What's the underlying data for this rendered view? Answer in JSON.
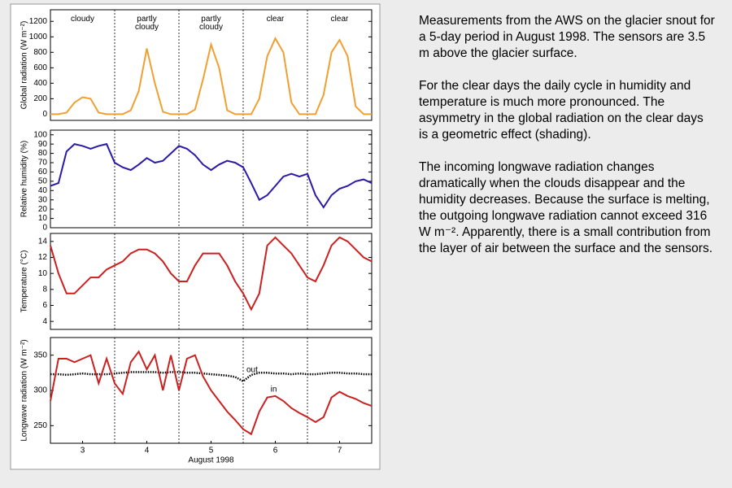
{
  "chart_data": [
    {
      "type": "line",
      "ylabel": "Global radiation (W m⁻²)",
      "color": "#f0a030",
      "annotations": [
        "cloudy",
        "partly cloudy",
        "partly cloudy",
        "clear",
        "clear"
      ],
      "x": [
        3,
        3.125,
        3.25,
        3.375,
        3.5,
        3.625,
        3.75,
        3.875,
        4,
        4.125,
        4.25,
        4.375,
        4.5,
        4.625,
        4.75,
        4.875,
        5,
        5.125,
        5.25,
        5.375,
        5.5,
        5.625,
        5.75,
        5.875,
        6,
        6.125,
        6.25,
        6.375,
        6.5,
        6.625,
        6.75,
        6.875,
        7,
        7.125,
        7.25,
        7.375,
        7.5,
        7.625,
        7.75,
        7.875,
        8
      ],
      "values": [
        0,
        0,
        20,
        150,
        220,
        200,
        20,
        0,
        0,
        0,
        50,
        300,
        850,
        400,
        30,
        0,
        0,
        0,
        60,
        450,
        900,
        600,
        50,
        0,
        0,
        0,
        200,
        750,
        980,
        800,
        150,
        0,
        0,
        0,
        250,
        800,
        960,
        750,
        100,
        0,
        0
      ],
      "xlim": [
        3,
        8
      ],
      "ylim": [
        -80,
        1350
      ],
      "yticks": [
        0,
        200,
        400,
        600,
        800,
        1000,
        1200
      ]
    },
    {
      "type": "line",
      "ylabel": "Relative humidity (%)",
      "color": "#2a1aa8",
      "x": [
        3,
        3.125,
        3.25,
        3.375,
        3.5,
        3.625,
        3.75,
        3.875,
        4,
        4.125,
        4.25,
        4.375,
        4.5,
        4.625,
        4.75,
        4.875,
        5,
        5.125,
        5.25,
        5.375,
        5.5,
        5.625,
        5.75,
        5.875,
        6,
        6.125,
        6.25,
        6.375,
        6.5,
        6.625,
        6.75,
        6.875,
        7,
        7.125,
        7.25,
        7.375,
        7.5,
        7.625,
        7.75,
        7.875,
        8
      ],
      "values": [
        45,
        48,
        82,
        90,
        88,
        85,
        88,
        90,
        70,
        65,
        62,
        68,
        75,
        70,
        72,
        80,
        88,
        85,
        78,
        68,
        62,
        68,
        72,
        70,
        65,
        48,
        30,
        35,
        45,
        55,
        58,
        55,
        58,
        35,
        22,
        35,
        42,
        45,
        50,
        52,
        48
      ],
      "xlim": [
        3,
        8
      ],
      "ylim": [
        0,
        105
      ],
      "yticks": [
        0,
        10,
        20,
        30,
        40,
        50,
        60,
        70,
        80,
        90,
        100
      ]
    },
    {
      "type": "line",
      "ylabel": "Temperature (°C)",
      "color": "#cc2020",
      "x": [
        3,
        3.125,
        3.25,
        3.375,
        3.5,
        3.625,
        3.75,
        3.875,
        4,
        4.125,
        4.25,
        4.375,
        4.5,
        4.625,
        4.75,
        4.875,
        5,
        5.125,
        5.25,
        5.375,
        5.5,
        5.625,
        5.75,
        5.875,
        6,
        6.125,
        6.25,
        6.375,
        6.5,
        6.625,
        6.75,
        6.875,
        7,
        7.125,
        7.25,
        7.375,
        7.5,
        7.625,
        7.75,
        7.875,
        8
      ],
      "values": [
        13.5,
        10,
        7.5,
        7.5,
        8.5,
        9.5,
        9.5,
        10.5,
        11,
        11.5,
        12.5,
        13,
        13,
        12.5,
        11.5,
        10,
        9,
        9,
        11,
        12.5,
        12.5,
        12.5,
        11,
        9,
        7.5,
        5.5,
        7.5,
        13.5,
        14.5,
        13.5,
        12.5,
        11,
        9.5,
        9,
        11,
        13.5,
        14.5,
        14,
        13,
        12,
        11.5
      ],
      "xlim": [
        3,
        8
      ],
      "ylim": [
        3,
        15
      ],
      "yticks": [
        4,
        6,
        8,
        10,
        12,
        14
      ]
    },
    {
      "type": "line",
      "ylabel": "Longwave radiation (W m⁻²)",
      "xlabel": "August 1998",
      "x": [
        3,
        3.125,
        3.25,
        3.375,
        3.5,
        3.625,
        3.75,
        3.875,
        4,
        4.125,
        4.25,
        4.375,
        4.5,
        4.625,
        4.75,
        4.875,
        5,
        5.125,
        5.25,
        5.375,
        5.5,
        5.625,
        5.75,
        5.875,
        6,
        6.125,
        6.25,
        6.375,
        6.5,
        6.625,
        6.75,
        6.875,
        7,
        7.125,
        7.25,
        7.375,
        7.5,
        7.625,
        7.75,
        7.875,
        8
      ],
      "series": [
        {
          "name": "out",
          "color": "#000000",
          "style": "dotted",
          "values": [
            323,
            323,
            322,
            323,
            324,
            323,
            323,
            323,
            324,
            325,
            326,
            326,
            326,
            326,
            325,
            326,
            326,
            325,
            325,
            324,
            323,
            322,
            321,
            319,
            313,
            322,
            325,
            325,
            324,
            324,
            323,
            324,
            323,
            323,
            324,
            325,
            325,
            324,
            324,
            323,
            323
          ]
        },
        {
          "name": "in",
          "color": "#cc2020",
          "style": "solid",
          "values": [
            285,
            345,
            345,
            340,
            345,
            350,
            310,
            345,
            310,
            295,
            340,
            355,
            330,
            350,
            300,
            350,
            300,
            345,
            350,
            320,
            300,
            285,
            270,
            258,
            245,
            238,
            270,
            290,
            292,
            285,
            275,
            268,
            262,
            255,
            262,
            290,
            298,
            292,
            288,
            282,
            278
          ]
        }
      ],
      "xlim": [
        3,
        8
      ],
      "ylim": [
        225,
        375
      ],
      "yticks": [
        250,
        300,
        350
      ],
      "xticks": [
        {
          "value": 3.5,
          "label": "3"
        },
        {
          "value": 4.5,
          "label": "4"
        },
        {
          "value": 5.5,
          "label": "5"
        },
        {
          "value": 6.5,
          "label": "6"
        },
        {
          "value": 7.5,
          "label": "7"
        }
      ]
    }
  ],
  "description": [
    "Measurements from the AWS on the glacier snout for a 5-day period in August 1998. The sensors are 3.5 m above the glacier surface.",
    "For the clear days the daily cycle in humidity and temperature is much more pronounced. The asymmetry in the global radiation on the clear days is a geometric effect (shading).",
    "The incoming longwave radiation changes dramatically when the clouds disappear and the humidity decreases. Because the surface is melting, the outgoing longwave radiation cannot exceed 316 W m⁻². Apparently, there is a small contribution from the layer of air between the surface and the sensors."
  ]
}
